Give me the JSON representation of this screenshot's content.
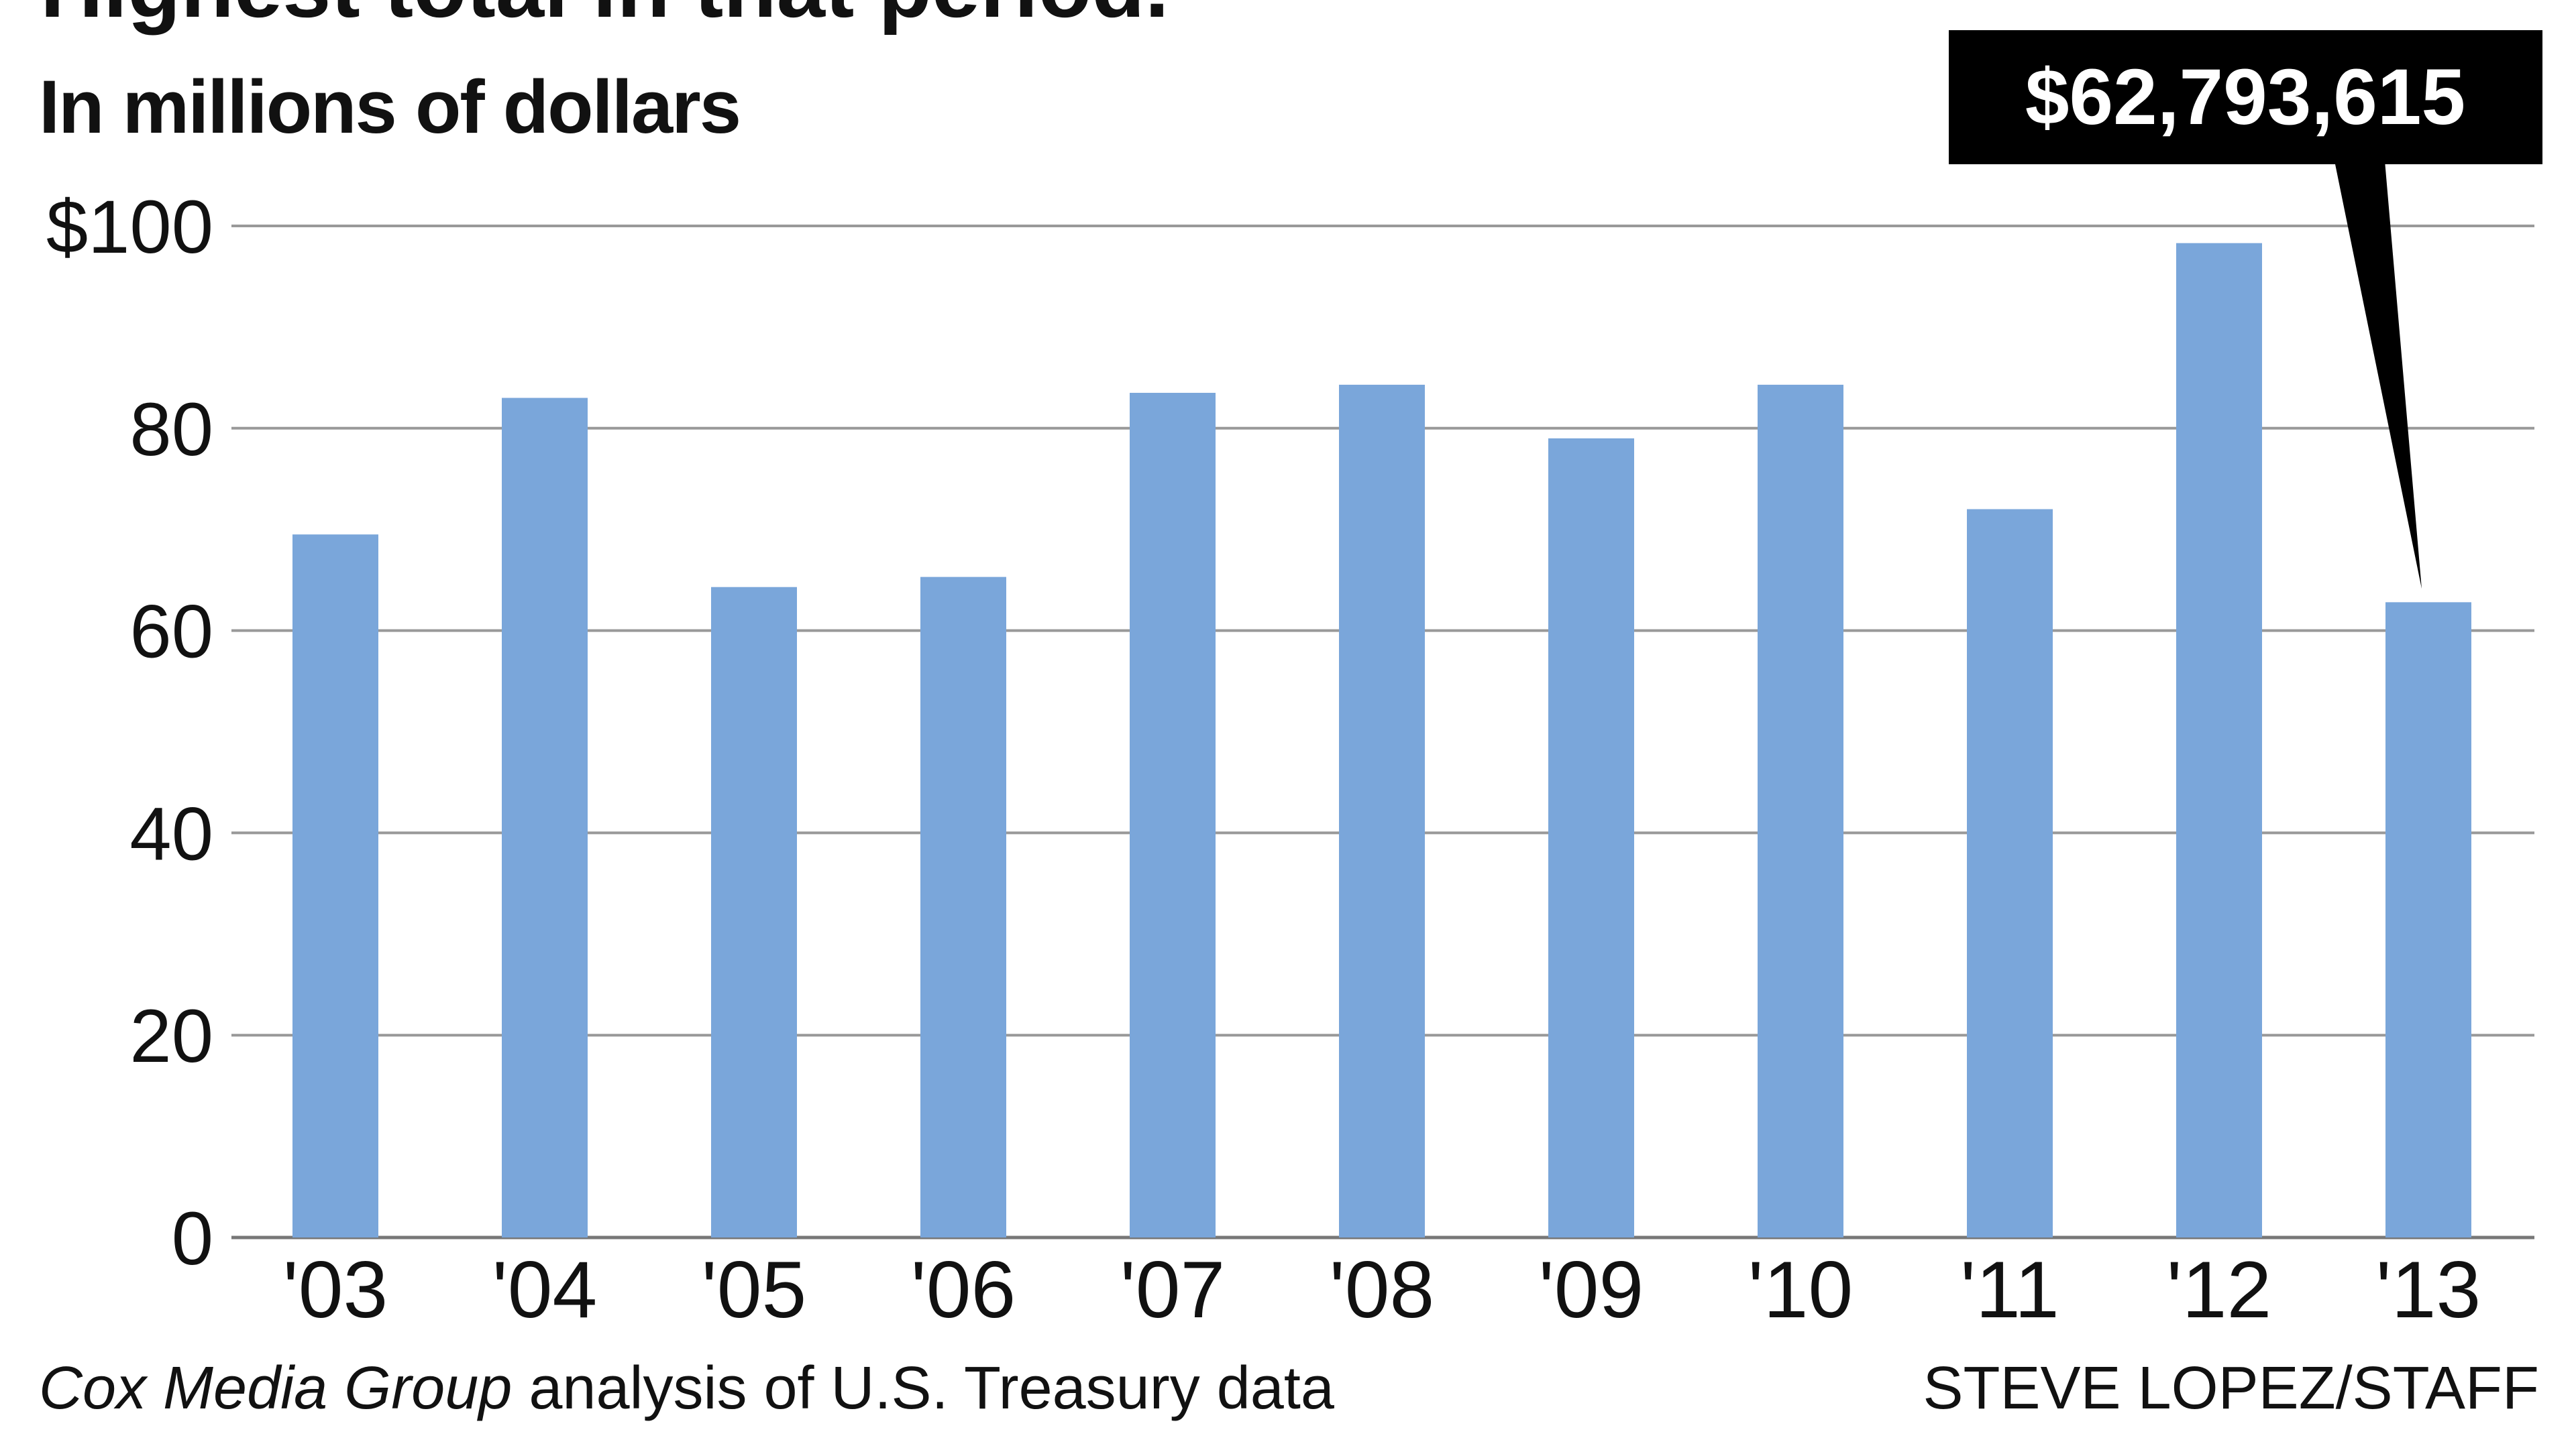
{
  "chart_data": {
    "type": "bar",
    "title": "Highest total in that period.",
    "subtitle": "In millions of dollars",
    "categories": [
      "'03",
      "'04",
      "'05",
      "'06",
      "'07",
      "'08",
      "'09",
      "'10",
      "'11",
      "'12",
      "'13"
    ],
    "values": [
      69.5,
      83.0,
      64.3,
      65.3,
      83.5,
      84.3,
      79.0,
      84.3,
      72.0,
      98.3,
      62.8
    ],
    "ylim": [
      0,
      100
    ],
    "yticks": [
      0,
      20,
      40,
      60,
      80,
      100
    ],
    "ytick_labels": [
      "0",
      "20",
      "40",
      "60",
      "80",
      "$100"
    ],
    "grid": true,
    "xlabel": "",
    "ylabel": "",
    "annotation": {
      "text": "$62,793,615",
      "category": "'13"
    },
    "bar_color": "#7aa6da"
  },
  "footer": {
    "source_italic": "Cox Media Group",
    "source_rest": " analysis of U.S. Treasury data",
    "credit": "STEVE LOPEZ/STAFF"
  }
}
